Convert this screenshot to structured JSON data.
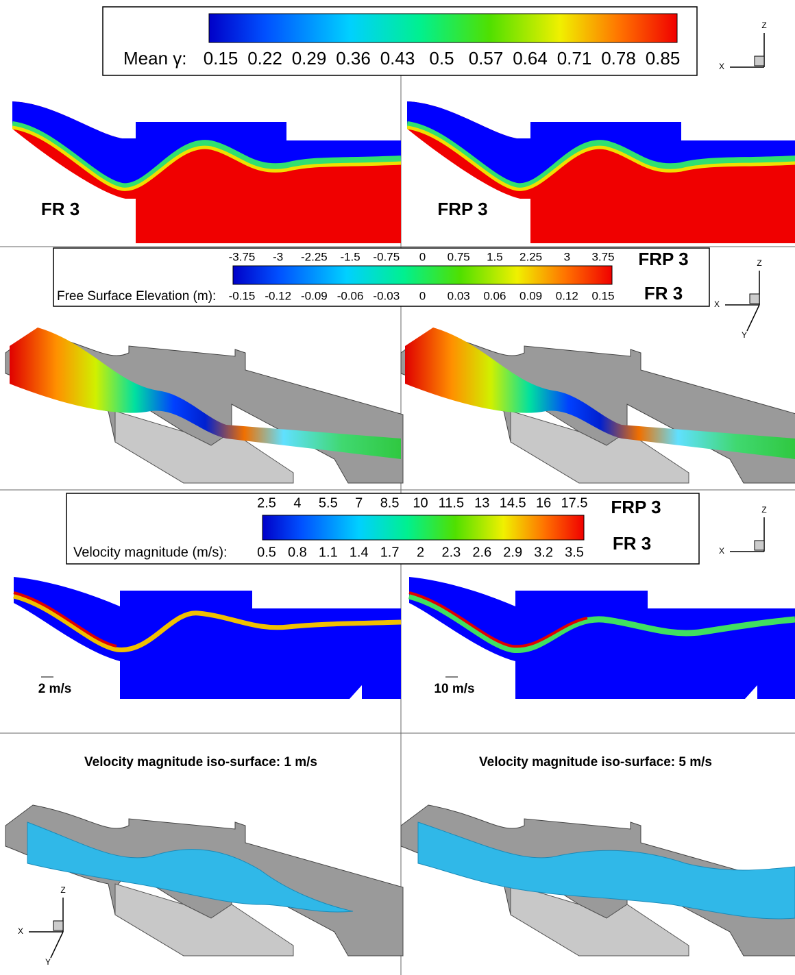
{
  "legends": [
    {
      "label": "Mean γ:",
      "ticks": [
        "0.15",
        "0.22",
        "0.29",
        "0.36",
        "0.43",
        "0.5",
        "0.57",
        "0.64",
        "0.71",
        "0.78",
        "0.85"
      ]
    },
    {
      "label": "Free Surface Elevation (m):",
      "ticks_top": [
        "-3.75",
        "-3",
        "-2.25",
        "-1.5",
        "-0.75",
        "0",
        "0.75",
        "1.5",
        "2.25",
        "3",
        "3.75"
      ],
      "ticks": [
        "-0.15",
        "-0.12",
        "-0.09",
        "-0.06",
        "-0.03",
        "0",
        "0.03",
        "0.06",
        "0.09",
        "0.12",
        "0.15"
      ],
      "series": [
        "FRP 3",
        "FR 3"
      ]
    },
    {
      "label": "Velocity magnitude (m/s):",
      "ticks_top": [
        "2.5",
        "4",
        "5.5",
        "7",
        "8.5",
        "10",
        "11.5",
        "13",
        "14.5",
        "16",
        "17.5"
      ],
      "ticks": [
        "0.5",
        "0.8",
        "1.1",
        "1.4",
        "1.7",
        "2",
        "2.3",
        "2.6",
        "2.9",
        "3.2",
        "3.5"
      ],
      "series": [
        "FRP 3",
        "FR 3"
      ]
    }
  ],
  "panel_labels": [
    "FR 3",
    "FRP 3"
  ],
  "scale_labels": [
    "2 m/s",
    "10 m/s"
  ],
  "iso_titles": [
    "Velocity magnitude iso-surface: 1 m/s",
    "Velocity magnitude iso-surface: 5 m/s"
  ],
  "triads": [
    {
      "labels": [
        "Z",
        "X"
      ]
    },
    {
      "labels": [
        "Z",
        "X",
        "Y"
      ]
    },
    {
      "labels": [
        "Z",
        "X"
      ]
    },
    {
      "labels": [
        "Z",
        "X",
        "Y"
      ]
    }
  ]
}
